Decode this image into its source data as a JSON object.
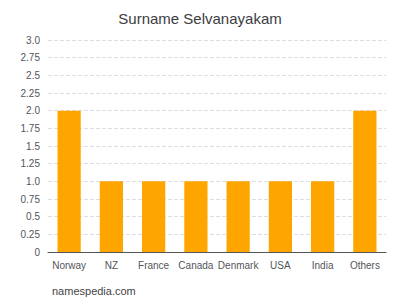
{
  "chart_data": {
    "type": "bar",
    "title": "Surname Selvanayakam",
    "categories": [
      "Norway",
      "NZ",
      "France",
      "Canada",
      "Denmark",
      "USA",
      "India",
      "Others"
    ],
    "values": [
      2,
      1,
      1,
      1,
      1,
      1,
      1,
      2
    ],
    "color": "#FFA500",
    "ylim": [
      0,
      3
    ],
    "yticks": [
      0,
      0.25,
      0.5,
      0.75,
      {
        "value": 1,
        "label": "1.0"
      },
      1.25,
      1.5,
      1.75,
      {
        "value": 2,
        "label": "2.0"
      },
      2.25,
      2.5,
      2.75,
      {
        "value": 3,
        "label": "3.0"
      }
    ],
    "grid": true,
    "annotations": [
      "namespedia.com"
    ]
  }
}
